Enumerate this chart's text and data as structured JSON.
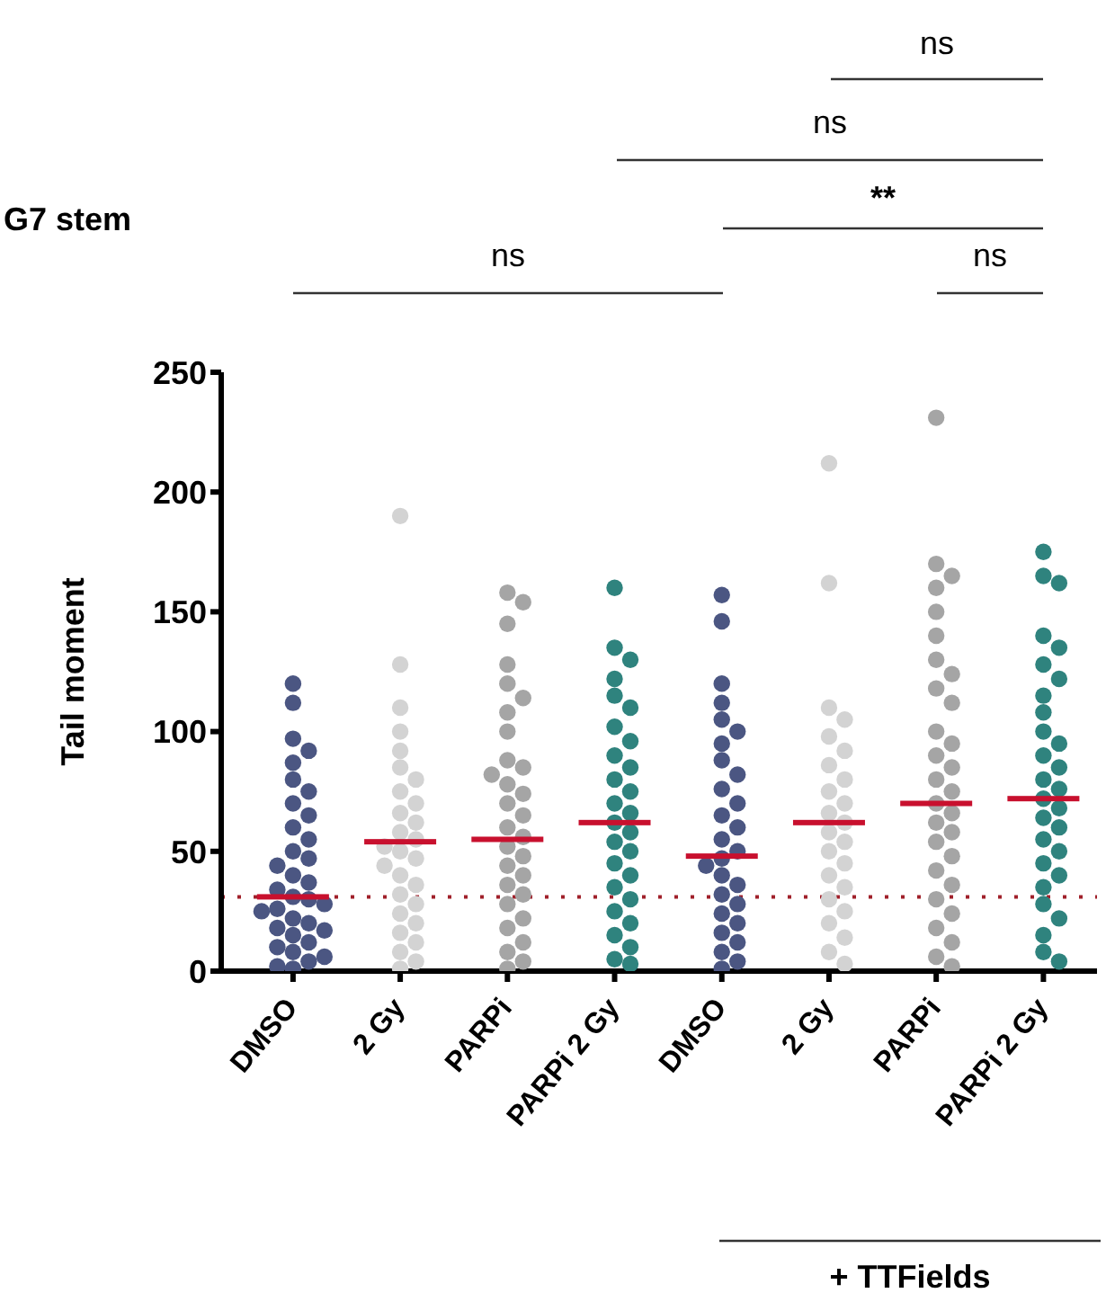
{
  "chart_data": {
    "type": "scatter",
    "title": "G7 stem",
    "ylabel": "Tail moment",
    "categories": [
      "DMSO",
      "2 Gy",
      "PARPi",
      "PARPi 2 Gy",
      "DMSO",
      "2 Gy",
      "PARPi",
      "PARPi 2 Gy"
    ],
    "ylim": [
      0,
      250
    ],
    "yticks": [
      0,
      50,
      100,
      150,
      200,
      250
    ],
    "marker": "circle",
    "series": [
      {
        "colors": [
          "#4b5682",
          "#d3d3d3",
          "#a5a5a5",
          "#2f837e",
          "#4b5682",
          "#d3d3d3",
          "#a5a5a5",
          "#2f837e"
        ],
        "values": [
          120,
          190,
          158,
          160,
          157,
          212,
          231,
          175
        ]
      },
      {
        "colors": [
          "#4b5682",
          "#d3d3d3",
          "#a5a5a5",
          "#2f837e",
          "#4b5682",
          "#d3d3d3",
          "#a5a5a5",
          "#2f837e"
        ],
        "values": [
          112,
          128,
          154,
          135,
          146,
          162,
          170,
          165
        ]
      },
      {
        "colors": [
          "#4b5682",
          "#d3d3d3",
          "#a5a5a5",
          "#2f837e",
          "#4b5682",
          "#d3d3d3",
          "#a5a5a5",
          "#2f837e"
        ],
        "values": [
          97,
          110,
          145,
          130,
          120,
          110,
          165,
          162
        ]
      },
      {
        "colors": [
          "#4b5682",
          "#d3d3d3",
          "#a5a5a5",
          "#2f837e",
          "#4b5682",
          "#d3d3d3",
          "#a5a5a5",
          "#2f837e"
        ],
        "values": [
          92,
          100,
          128,
          122,
          112,
          105,
          160,
          140
        ]
      },
      {
        "colors": [
          "#4b5682",
          "#d3d3d3",
          "#a5a5a5",
          "#2f837e",
          "#4b5682",
          "#d3d3d3",
          "#a5a5a5",
          "#2f837e"
        ],
        "values": [
          87,
          92,
          120,
          115,
          105,
          98,
          150,
          135
        ]
      },
      {
        "colors": [
          "#4b5682",
          "#d3d3d3",
          "#a5a5a5",
          "#2f837e",
          "#4b5682",
          "#d3d3d3",
          "#a5a5a5",
          "#2f837e"
        ],
        "values": [
          80,
          85,
          114,
          110,
          100,
          92,
          140,
          128
        ]
      },
      {
        "colors": [
          "#4b5682",
          "#d3d3d3",
          "#a5a5a5",
          "#2f837e",
          "#4b5682",
          "#d3d3d3",
          "#a5a5a5",
          "#2f837e"
        ],
        "values": [
          75,
          80,
          108,
          102,
          95,
          86,
          130,
          122
        ]
      },
      {
        "colors": [
          "#4b5682",
          "#d3d3d3",
          "#a5a5a5",
          "#2f837e",
          "#4b5682",
          "#d3d3d3",
          "#a5a5a5",
          "#2f837e"
        ],
        "values": [
          70,
          75,
          100,
          96,
          88,
          80,
          124,
          115
        ]
      },
      {
        "colors": [
          "#4b5682",
          "#d3d3d3",
          "#a5a5a5",
          "#2f837e",
          "#4b5682",
          "#d3d3d3",
          "#a5a5a5",
          "#2f837e"
        ],
        "values": [
          65,
          70,
          88,
          90,
          82,
          75,
          118,
          108
        ]
      },
      {
        "colors": [
          "#4b5682",
          "#d3d3d3",
          "#a5a5a5",
          "#2f837e",
          "#4b5682",
          "#d3d3d3",
          "#a5a5a5",
          "#2f837e"
        ],
        "values": [
          60,
          66,
          85,
          85,
          76,
          70,
          112,
          100
        ]
      },
      {
        "colors": [
          "#4b5682",
          "#d3d3d3",
          "#a5a5a5",
          "#2f837e",
          "#4b5682",
          "#d3d3d3",
          "#a5a5a5",
          "#2f837e"
        ],
        "values": [
          55,
          62,
          82,
          80,
          70,
          66,
          100,
          95
        ]
      },
      {
        "colors": [
          "#4b5682",
          "#d3d3d3",
          "#a5a5a5",
          "#2f837e",
          "#4b5682",
          "#d3d3d3",
          "#a5a5a5",
          "#2f837e"
        ],
        "values": [
          50,
          58,
          78,
          75,
          65,
          62,
          95,
          90
        ]
      },
      {
        "colors": [
          "#4b5682",
          "#d3d3d3",
          "#a5a5a5",
          "#2f837e",
          "#4b5682",
          "#d3d3d3",
          "#a5a5a5",
          "#2f837e"
        ],
        "values": [
          47,
          55,
          74,
          70,
          60,
          58,
          90,
          85
        ]
      },
      {
        "colors": [
          "#4b5682",
          "#d3d3d3",
          "#a5a5a5",
          "#2f837e",
          "#4b5682",
          "#d3d3d3",
          "#a5a5a5",
          "#2f837e"
        ],
        "values": [
          44,
          52,
          70,
          66,
          55,
          54,
          85,
          80
        ]
      },
      {
        "colors": [
          "#4b5682",
          "#d3d3d3",
          "#a5a5a5",
          "#2f837e",
          "#4b5682",
          "#d3d3d3",
          "#a5a5a5",
          "#2f837e"
        ],
        "values": [
          40,
          50,
          65,
          62,
          50,
          50,
          80,
          76
        ]
      },
      {
        "colors": [
          "#4b5682",
          "#d3d3d3",
          "#a5a5a5",
          "#2f837e",
          "#4b5682",
          "#d3d3d3",
          "#a5a5a5",
          "#2f837e"
        ],
        "values": [
          37,
          47,
          60,
          58,
          47,
          45,
          75,
          72
        ]
      },
      {
        "colors": [
          "#4b5682",
          "#d3d3d3",
          "#a5a5a5",
          "#2f837e",
          "#4b5682",
          "#d3d3d3",
          "#a5a5a5",
          "#2f837e"
        ],
        "values": [
          34,
          44,
          56,
          54,
          44,
          40,
          70,
          68
        ]
      },
      {
        "colors": [
          "#4b5682",
          "#d3d3d3",
          "#a5a5a5",
          "#2f837e",
          "#4b5682",
          "#d3d3d3",
          "#a5a5a5",
          "#2f837e"
        ],
        "values": [
          31,
          40,
          52,
          50,
          40,
          35,
          66,
          64
        ]
      },
      {
        "colors": [
          "#4b5682",
          "#d3d3d3",
          "#a5a5a5",
          "#2f837e",
          "#4b5682",
          "#d3d3d3",
          "#a5a5a5",
          "#2f837e"
        ],
        "values": [
          30,
          36,
          48,
          45,
          36,
          30,
          62,
          60
        ]
      },
      {
        "colors": [
          "#4b5682",
          "#d3d3d3",
          "#a5a5a5",
          "#2f837e",
          "#4b5682",
          "#d3d3d3",
          "#a5a5a5",
          "#2f837e"
        ],
        "values": [
          28,
          32,
          44,
          40,
          32,
          25,
          58,
          55
        ]
      },
      {
        "colors": [
          "#4b5682",
          "#d3d3d3",
          "#a5a5a5",
          "#2f837e",
          "#4b5682",
          "#d3d3d3",
          "#a5a5a5",
          "#2f837e"
        ],
        "values": [
          26,
          28,
          40,
          35,
          28,
          20,
          54,
          50
        ]
      },
      {
        "colors": [
          "#4b5682",
          "#d3d3d3",
          "#a5a5a5",
          "#2f837e",
          "#4b5682",
          "#d3d3d3",
          "#a5a5a5",
          "#2f837e"
        ],
        "values": [
          25,
          24,
          36,
          30,
          24,
          14,
          48,
          45
        ]
      },
      {
        "colors": [
          "#4b5682",
          "#d3d3d3",
          "#a5a5a5",
          "#2f837e",
          "#4b5682",
          "#d3d3d3",
          "#a5a5a5",
          "#2f837e"
        ],
        "values": [
          22,
          20,
          32,
          25,
          20,
          8,
          42,
          40
        ]
      },
      {
        "colors": [
          "#4b5682",
          "#d3d3d3",
          "#a5a5a5",
          "#2f837e",
          "#4b5682",
          "#d3d3d3",
          "#a5a5a5",
          "#2f837e"
        ],
        "values": [
          20,
          16,
          28,
          20,
          16,
          3,
          36,
          35
        ]
      },
      {
        "colors": [
          "#4b5682",
          "#d3d3d3",
          "#a5a5a5",
          "#2f837e",
          "#4b5682",
          "#d3d3d3",
          "#a5a5a5",
          "#2f837e"
        ],
        "values": [
          18,
          12,
          22,
          15,
          12,
          null,
          30,
          28
        ]
      },
      {
        "colors": [
          "#4b5682",
          "#d3d3d3",
          "#a5a5a5",
          "#2f837e",
          "#4b5682",
          "#d3d3d3",
          "#a5a5a5",
          "#2f837e"
        ],
        "values": [
          17,
          8,
          18,
          10,
          8,
          null,
          24,
          22
        ]
      },
      {
        "colors": [
          "#4b5682",
          "#d3d3d3",
          "#a5a5a5",
          "#2f837e",
          "#4b5682",
          "#d3d3d3",
          "#a5a5a5",
          "#2f837e"
        ],
        "values": [
          15,
          4,
          12,
          5,
          4,
          null,
          18,
          15
        ]
      },
      {
        "colors": [
          "#4b5682",
          "#d3d3d3",
          "#a5a5a5",
          "#2f837e",
          "#4b5682",
          "#d3d3d3",
          "#a5a5a5",
          "#2f837e"
        ],
        "values": [
          12,
          1,
          8,
          3,
          1,
          null,
          12,
          8
        ]
      },
      {
        "colors": [
          "#4b5682",
          "#d3d3d3",
          "#a5a5a5",
          "#2f837e",
          "#4b5682",
          "#d3d3d3",
          "#a5a5a5",
          "#2f837e"
        ],
        "values": [
          10,
          null,
          4,
          null,
          null,
          null,
          6,
          4
        ]
      },
      {
        "colors": [
          "#4b5682",
          "#d3d3d3",
          "#a5a5a5",
          "#2f837e",
          "#4b5682",
          "#d3d3d3",
          "#a5a5a5",
          "#2f837e"
        ],
        "values": [
          8,
          null,
          1,
          null,
          null,
          null,
          2,
          null
        ]
      },
      {
        "colors": [
          "#4b5682",
          "#d3d3d3",
          "#a5a5a5",
          "#2f837e",
          "#4b5682",
          "#d3d3d3",
          "#a5a5a5",
          "#2f837e"
        ],
        "values": [
          6,
          null,
          null,
          null,
          null,
          null,
          null,
          null
        ]
      },
      {
        "colors": [
          "#4b5682",
          "#d3d3d3",
          "#a5a5a5",
          "#2f837e",
          "#4b5682",
          "#d3d3d3",
          "#a5a5a5",
          "#2f837e"
        ],
        "values": [
          4,
          null,
          null,
          null,
          null,
          null,
          null,
          null
        ]
      },
      {
        "colors": [
          "#4b5682",
          "#d3d3d3",
          "#a5a5a5",
          "#2f837e",
          "#4b5682",
          "#d3d3d3",
          "#a5a5a5",
          "#2f837e"
        ],
        "values": [
          2,
          null,
          null,
          null,
          null,
          null,
          null,
          null
        ]
      },
      {
        "colors": [
          "#4b5682",
          "#d3d3d3",
          "#a5a5a5",
          "#2f837e",
          "#4b5682",
          "#d3d3d3",
          "#a5a5a5",
          "#2f837e"
        ],
        "values": [
          1,
          null,
          null,
          null,
          null,
          null,
          null,
          null
        ]
      },
      {
        "type": "box",
        "color": "#c8102e",
        "boxes": [
          {
            "low": 31,
            "q1": 31,
            "median": 31,
            "q3": 31,
            "high": 31
          },
          {
            "low": 54,
            "q1": 54,
            "median": 54,
            "q3": 54,
            "high": 54
          },
          {
            "low": 55,
            "q1": 55,
            "median": 55,
            "q3": 55,
            "high": 55
          },
          {
            "low": 62,
            "q1": 62,
            "median": 62,
            "q3": 62,
            "high": 62
          },
          {
            "low": 48,
            "q1": 48,
            "median": 48,
            "q3": 48,
            "high": 48
          },
          {
            "low": 62,
            "q1": 62,
            "median": 62,
            "q3": 62,
            "high": 62
          },
          {
            "low": 70,
            "q1": 70,
            "median": 70,
            "q3": 70,
            "high": 70
          },
          {
            "low": 72,
            "q1": 72,
            "median": 72,
            "q3": 72,
            "high": 72
          }
        ]
      }
    ],
    "ref_lines": [
      {
        "axis": "y",
        "value": 31,
        "color": "#a0202a",
        "line_style": "dotted"
      }
    ],
    "annotations": [
      "ns",
      "ns",
      "**",
      "ns",
      "ns",
      "+ TTFields"
    ]
  }
}
